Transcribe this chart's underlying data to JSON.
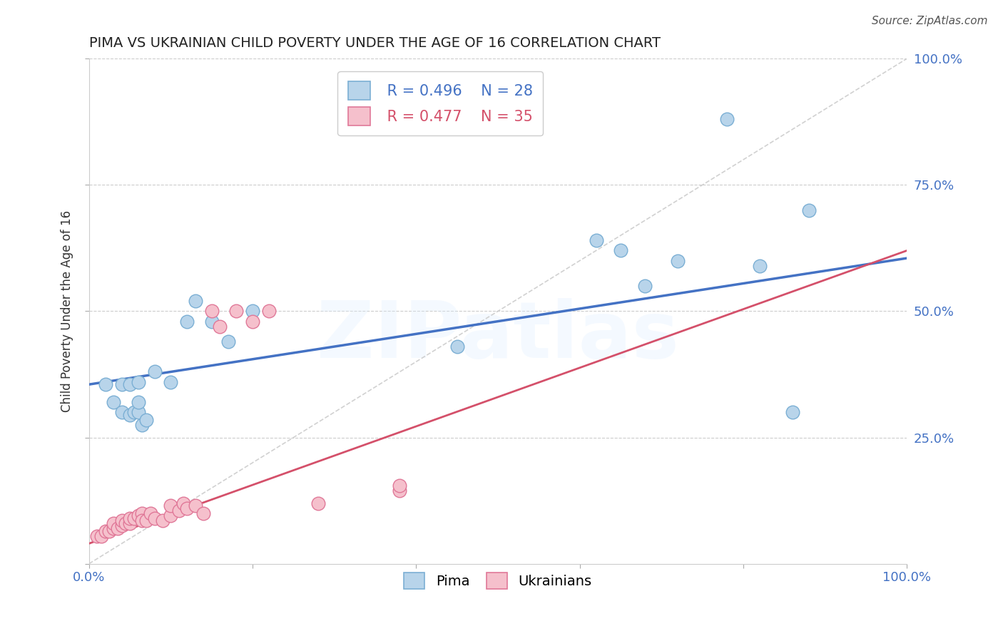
{
  "title": "PIMA VS UKRAINIAN CHILD POVERTY UNDER THE AGE OF 16 CORRELATION CHART",
  "source": "Source: ZipAtlas.com",
  "ylabel": "Child Poverty Under the Age of 16",
  "xlim": [
    0,
    1
  ],
  "ylim": [
    0,
    1
  ],
  "pima_color": "#b8d4ea",
  "pima_edge_color": "#7bafd4",
  "ukr_color": "#f5c0cc",
  "ukr_edge_color": "#e07898",
  "pima_line_color": "#4472c4",
  "ukr_line_color": "#d4506a",
  "diagonal_color": "#cccccc",
  "legend_pima_r": "R = 0.496",
  "legend_pima_n": "N = 28",
  "legend_ukr_r": "R = 0.477",
  "legend_ukr_n": "N = 35",
  "watermark": "ZIPatlas",
  "pima_x": [
    0.02,
    0.03,
    0.04,
    0.05,
    0.055,
    0.06,
    0.065,
    0.07,
    0.1,
    0.12,
    0.13,
    0.15,
    0.17,
    0.2,
    0.45,
    0.62,
    0.65,
    0.68,
    0.72,
    0.78,
    0.82,
    0.86,
    0.88,
    0.04,
    0.05,
    0.06,
    0.06,
    0.08
  ],
  "pima_y": [
    0.355,
    0.32,
    0.3,
    0.295,
    0.3,
    0.3,
    0.275,
    0.285,
    0.36,
    0.48,
    0.52,
    0.48,
    0.44,
    0.5,
    0.43,
    0.64,
    0.62,
    0.55,
    0.6,
    0.88,
    0.59,
    0.3,
    0.7,
    0.355,
    0.355,
    0.36,
    0.32,
    0.38
  ],
  "ukr_x": [
    0.01,
    0.015,
    0.02,
    0.025,
    0.03,
    0.03,
    0.035,
    0.04,
    0.04,
    0.045,
    0.05,
    0.05,
    0.055,
    0.06,
    0.065,
    0.065,
    0.07,
    0.075,
    0.08,
    0.09,
    0.1,
    0.1,
    0.11,
    0.115,
    0.12,
    0.13,
    0.14,
    0.15,
    0.16,
    0.18,
    0.2,
    0.22,
    0.28,
    0.38,
    0.38
  ],
  "ukr_y": [
    0.055,
    0.055,
    0.065,
    0.065,
    0.07,
    0.08,
    0.07,
    0.075,
    0.085,
    0.08,
    0.08,
    0.09,
    0.09,
    0.095,
    0.1,
    0.085,
    0.085,
    0.1,
    0.09,
    0.085,
    0.095,
    0.115,
    0.105,
    0.12,
    0.11,
    0.115,
    0.1,
    0.5,
    0.47,
    0.5,
    0.48,
    0.5,
    0.12,
    0.145,
    0.155
  ],
  "pima_line_x0": 0.0,
  "pima_line_y0": 0.355,
  "pima_line_x1": 1.0,
  "pima_line_y1": 0.605,
  "ukr_line_x0": 0.0,
  "ukr_line_y0": 0.04,
  "ukr_line_x1": 1.0,
  "ukr_line_y1": 0.62
}
